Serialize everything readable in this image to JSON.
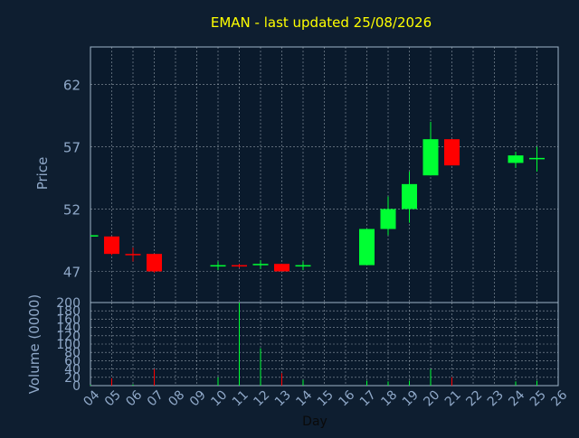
{
  "chart_data": {
    "type": "candlestick",
    "title": "EMAN - last updated 25/08/2026",
    "xlabel": "Day",
    "price_ylabel": "Price",
    "volume_ylabel": "Volume (0000)",
    "price_ylim": [
      44.5,
      65.0
    ],
    "price_ticks": [
      47,
      52,
      57,
      62
    ],
    "volume_ylim": [
      0,
      200
    ],
    "volume_ticks": [
      0,
      20,
      40,
      60,
      80,
      100,
      120,
      140,
      160,
      180,
      200
    ],
    "days": [
      "04",
      "05",
      "06",
      "07",
      "08",
      "09",
      "10",
      "11",
      "12",
      "13",
      "14",
      "15",
      "16",
      "17",
      "18",
      "19",
      "20",
      "21",
      "22",
      "23",
      "24",
      "25",
      "26"
    ],
    "grid": true,
    "colors": {
      "background": "#0e1e30",
      "plot_background": "#0a1a2c",
      "axis": "#9fb4c8",
      "label": "#8fa8c8",
      "title": "#ffff00",
      "grid": "#c8d2dc",
      "up": "#00ff33",
      "down": "#ff0000"
    },
    "candles": [
      {
        "day": "04",
        "open": 49.9,
        "high": 49.9,
        "low": 49.9,
        "close": 49.9
      },
      {
        "day": "05",
        "open": 49.8,
        "high": 49.8,
        "low": 48.3,
        "close": 48.4
      },
      {
        "day": "06",
        "open": 48.4,
        "high": 48.9,
        "low": 47.8,
        "close": 48.3
      },
      {
        "day": "07",
        "open": 48.4,
        "high": 48.4,
        "low": 46.9,
        "close": 47.0
      },
      {
        "day": "10",
        "open": 47.4,
        "high": 47.8,
        "low": 47.1,
        "close": 47.5
      },
      {
        "day": "11",
        "open": 47.5,
        "high": 47.6,
        "low": 47.3,
        "close": 47.4
      },
      {
        "day": "12",
        "open": 47.5,
        "high": 47.9,
        "low": 47.2,
        "close": 47.6
      },
      {
        "day": "13",
        "open": 47.6,
        "high": 47.6,
        "low": 47.0,
        "close": 47.0
      },
      {
        "day": "14",
        "open": 47.4,
        "high": 47.8,
        "low": 47.1,
        "close": 47.5
      },
      {
        "day": "17",
        "open": 47.5,
        "high": 50.4,
        "low": 47.5,
        "close": 50.4
      },
      {
        "day": "18",
        "open": 50.4,
        "high": 53.0,
        "low": 49.9,
        "close": 52.0
      },
      {
        "day": "19",
        "open": 52.0,
        "high": 55.0,
        "low": 50.9,
        "close": 54.0
      },
      {
        "day": "20",
        "open": 54.7,
        "high": 59.0,
        "low": 54.7,
        "close": 57.6
      },
      {
        "day": "21",
        "open": 57.6,
        "high": 57.6,
        "low": 55.5,
        "close": 55.5
      },
      {
        "day": "24",
        "open": 55.7,
        "high": 56.6,
        "low": 55.3,
        "close": 56.3
      },
      {
        "day": "25",
        "open": 56.0,
        "high": 57.0,
        "low": 55.0,
        "close": 56.1
      }
    ],
    "volume": [
      {
        "day": "04",
        "value": 2,
        "dir": "up"
      },
      {
        "day": "05",
        "value": 18,
        "dir": "down"
      },
      {
        "day": "06",
        "value": 3,
        "dir": "up"
      },
      {
        "day": "07",
        "value": 40,
        "dir": "down"
      },
      {
        "day": "10",
        "value": 20,
        "dir": "up"
      },
      {
        "day": "11",
        "value": 200,
        "dir": "up"
      },
      {
        "day": "12",
        "value": 90,
        "dir": "up"
      },
      {
        "day": "13",
        "value": 30,
        "dir": "down"
      },
      {
        "day": "14",
        "value": 14,
        "dir": "up"
      },
      {
        "day": "17",
        "value": 12,
        "dir": "up"
      },
      {
        "day": "18",
        "value": 10,
        "dir": "up"
      },
      {
        "day": "19",
        "value": 12,
        "dir": "up"
      },
      {
        "day": "20",
        "value": 40,
        "dir": "up"
      },
      {
        "day": "21",
        "value": 20,
        "dir": "down"
      },
      {
        "day": "24",
        "value": 10,
        "dir": "up"
      },
      {
        "day": "25",
        "value": 12,
        "dir": "up"
      }
    ]
  }
}
